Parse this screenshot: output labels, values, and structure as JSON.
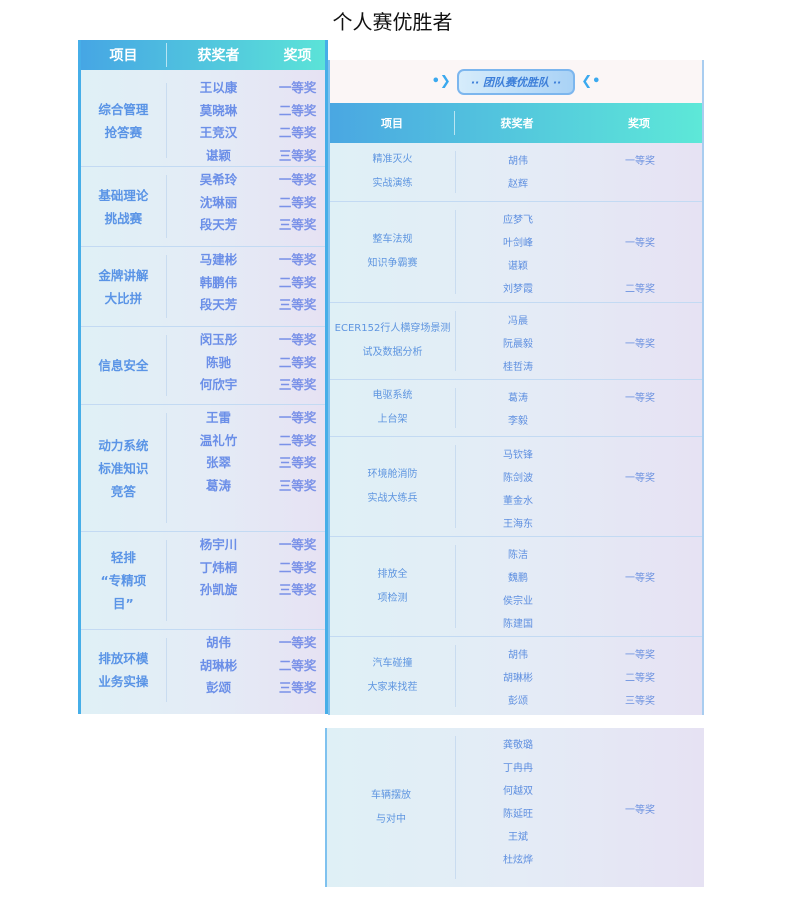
{
  "page_title": "个人赛优胜者",
  "individual": {
    "headers": [
      "项目",
      "获奖者",
      "奖项"
    ],
    "groups": [
      {
        "project": [
          "综合管理",
          "抢答赛"
        ],
        "names": [
          "王以康",
          "莫晓琳",
          "王竞汉",
          "谌颖"
        ],
        "awards": [
          "一等奖",
          "二等奖",
          "二等奖",
          "三等奖"
        ]
      },
      {
        "project": [
          "基础理论",
          "挑战赛"
        ],
        "names": [
          "吴希玲",
          "沈琳丽",
          "段天芳"
        ],
        "awards": [
          "一等奖",
          "二等奖",
          "三等奖"
        ]
      },
      {
        "project": [
          "金牌讲解",
          "大比拼"
        ],
        "names": [
          "马建彬",
          "韩鹏伟",
          "段天芳"
        ],
        "awards": [
          "一等奖",
          "二等奖",
          "三等奖"
        ]
      },
      {
        "project": [
          "信息安全"
        ],
        "names": [
          "闵玉彤",
          "陈驰",
          "何欣宇"
        ],
        "awards": [
          "一等奖",
          "二等奖",
          "三等奖"
        ]
      },
      {
        "project": [
          "动力系统",
          "标准知识",
          "竞答"
        ],
        "names": [
          "王雷",
          "温礼竹",
          "张翠",
          "葛涛"
        ],
        "awards": [
          "一等奖",
          "二等奖",
          "三等奖",
          "三等奖"
        ]
      },
      {
        "project": [
          "轻排",
          "“专精项",
          "目”"
        ],
        "names": [
          "杨宇川",
          "丁炜桐",
          "孙凯旋"
        ],
        "awards": [
          "一等奖",
          "二等奖",
          "三等奖"
        ]
      },
      {
        "project": [
          "排放环模",
          "业务实操"
        ],
        "names": [
          "胡伟",
          "胡琳彬",
          "彭颂"
        ],
        "awards": [
          "一等奖",
          "二等奖",
          "三等奖"
        ]
      }
    ]
  },
  "team": {
    "banner": "·· 团队赛优胜队 ··",
    "headers": [
      "项目",
      "获奖者",
      "奖项"
    ],
    "groups": [
      {
        "project": [
          "精准灭火",
          "实战演练"
        ],
        "names": [
          "胡伟",
          "赵辉"
        ],
        "awards": [
          "一等奖",
          ""
        ]
      },
      {
        "project": [
          "整车法规",
          "知识争霸赛"
        ],
        "names": [
          "应梦飞",
          "叶剑峰",
          "谌颖",
          "刘梦霞"
        ],
        "awards": [
          "",
          "一等奖",
          "",
          "二等奖"
        ]
      },
      {
        "project": [
          "ECER152行人横穿场景测",
          "试及数据分析"
        ],
        "names": [
          "冯晨",
          "阮晨毅",
          "桂哲涛"
        ],
        "awards": [
          "",
          "一等奖",
          ""
        ]
      },
      {
        "project": [
          "电驱系统",
          "上台架"
        ],
        "names": [
          "葛涛",
          "李毅"
        ],
        "awards": [
          "一等奖",
          ""
        ]
      },
      {
        "project": [
          "环境舱消防",
          "实战大练兵"
        ],
        "names": [
          "马钦锋",
          "陈剑波",
          "董金水",
          "王海东"
        ],
        "awards": [
          "",
          "一等奖",
          "",
          ""
        ]
      },
      {
        "project": [
          "排放全",
          "项检测"
        ],
        "names": [
          "陈洁",
          "魏鹏",
          "侯宗业",
          "陈建国"
        ],
        "awards": [
          "",
          "一等奖",
          "",
          ""
        ]
      },
      {
        "project": [
          "汽车碰撞",
          "大家来找茬"
        ],
        "names": [
          "胡伟",
          "胡琳彬",
          "彭颂"
        ],
        "awards": [
          "一等奖",
          "二等奖",
          "三等奖"
        ]
      }
    ],
    "continued": {
      "project": [
        "车辆摆放",
        "与对中"
      ],
      "names": [
        "龚敬璐",
        "丁冉冉",
        "何越双",
        "陈延旺",
        "王斌",
        "杜炫烨"
      ],
      "awards": [
        "一等奖"
      ]
    }
  },
  "colors": {
    "header_start": "#46a6e4",
    "header_end": "#5be3d8",
    "text": "#5e8fe0"
  }
}
